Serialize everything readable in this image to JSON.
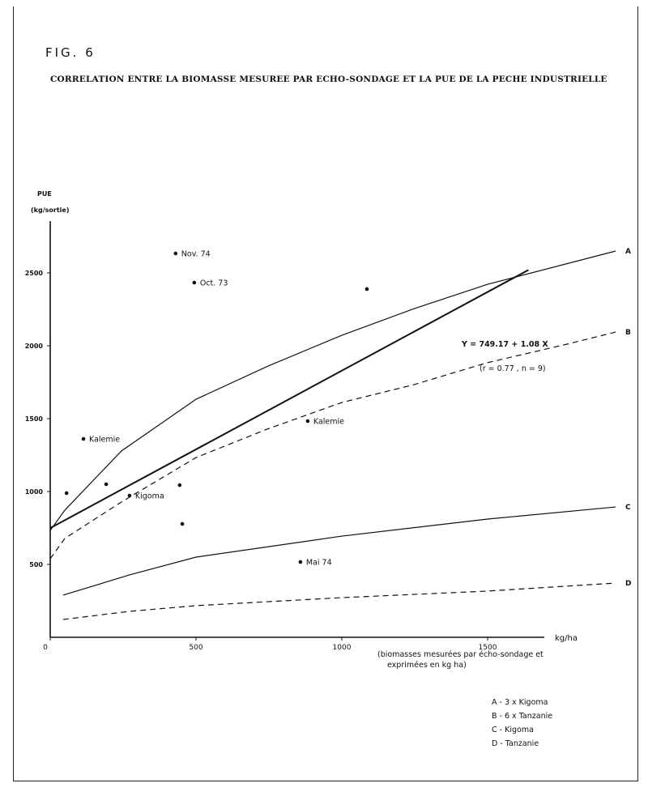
{
  "figure_label": "FIG. 6",
  "chart_data": {
    "type": "line",
    "title": "CORRELATION ENTRE LA BIOMASSE MESUREE PAR ECHO-SONDAGE ET LA PUE DE LA PECHE INDUSTRIELLE",
    "ylabel": [
      "PUE",
      "(kg/sortie)"
    ],
    "xlabel": "kg/ha",
    "xnote": [
      "(biomasses mesurées par écho-sondage et",
      "exprimées en kg ha)"
    ],
    "xlim": [
      0,
      1950
    ],
    "ylim": [
      0,
      2900
    ],
    "xticks": [
      0,
      500,
      1000,
      1500
    ],
    "yticks": [
      500,
      1000,
      1500,
      2000,
      2500
    ],
    "grid": false,
    "points": [
      {
        "x": 430,
        "y": 2633,
        "label": "Nov. 74"
      },
      {
        "x": 494,
        "y": 2433,
        "label": "Oct. 73"
      },
      {
        "x": 1086,
        "y": 2389,
        "label": ""
      },
      {
        "x": 114,
        "y": 1361,
        "label": "Kalemie"
      },
      {
        "x": 883,
        "y": 1483,
        "label": "Kalemie"
      },
      {
        "x": 56,
        "y": 989,
        "label": ""
      },
      {
        "x": 192,
        "y": 1050,
        "label": ""
      },
      {
        "x": 272,
        "y": 972,
        "label": "Kigoma"
      },
      {
        "x": 444,
        "y": 1044,
        "label": ""
      },
      {
        "x": 453,
        "y": 778,
        "label": ""
      },
      {
        "x": 858,
        "y": 517,
        "label": "Mai 74"
      }
    ],
    "regression": {
      "intercept": 749.17,
      "slope": 1.08,
      "x_range": [
        0,
        1640
      ],
      "equation": "Y = 749.17 + 1.08 X",
      "stats": "(r = 0.77 ,  n = 9)"
    },
    "series": [
      {
        "name": "A",
        "style": "solid",
        "x": [
          0,
          50,
          244,
          500,
          747,
          1000,
          1250,
          1500,
          1939
        ],
        "y": [
          733,
          872,
          1278,
          1633,
          1861,
          2072,
          2256,
          2422,
          2650
        ]
      },
      {
        "name": "B",
        "style": "dashed",
        "x": [
          0,
          50,
          244,
          500,
          744,
          1000,
          1247,
          1497,
          1772,
          1939
        ],
        "y": [
          539,
          678,
          928,
          1233,
          1428,
          1611,
          1733,
          1883,
          2011,
          2094
        ]
      },
      {
        "name": "C",
        "style": "solid",
        "x": [
          44,
          272,
          500,
          1000,
          1500,
          1939
        ],
        "y": [
          289,
          428,
          550,
          694,
          811,
          894
        ]
      },
      {
        "name": "D",
        "style": "dashed",
        "x": [
          44,
          272,
          500,
          1000,
          1500,
          1939
        ],
        "y": [
          122,
          178,
          217,
          272,
          317,
          372
        ]
      }
    ],
    "legend": [
      "A - 3 x Kigoma",
      "B - 6 x Tanzanie",
      "C - Kigoma",
      "D - Tanzanie"
    ],
    "legend_position": "bottom-right"
  }
}
